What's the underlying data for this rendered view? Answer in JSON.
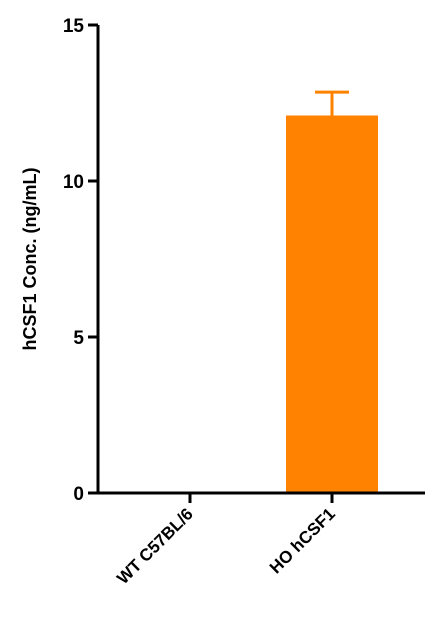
{
  "chart_data": {
    "type": "bar",
    "title": "",
    "xlabel": "",
    "ylabel": "hCSF1 Conc. (ng/mL)",
    "categories": [
      "WT C57BL/6",
      "HO hCSF1"
    ],
    "values": [
      0,
      12.1
    ],
    "error_upper": [
      0,
      0.75
    ],
    "ylim": [
      0,
      15
    ],
    "yticks": [
      0,
      5,
      10,
      15
    ],
    "ytick_labels": [
      "0",
      "5",
      "10",
      "15"
    ],
    "grid": false,
    "legend": "none",
    "bar_color": "#FF8200",
    "axis_color": "#000000"
  }
}
